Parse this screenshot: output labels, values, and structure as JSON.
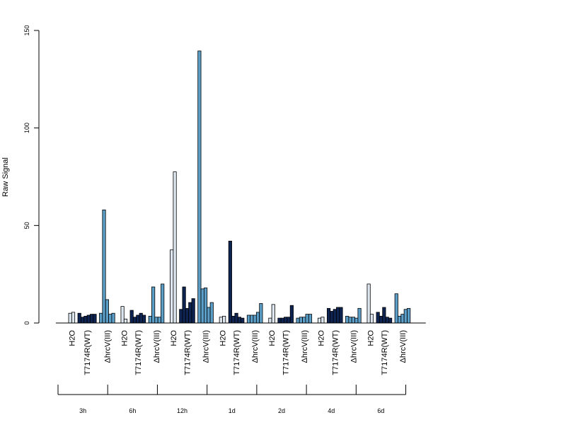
{
  "chart_data": {
    "type": "bar",
    "ylabel": "Raw Signal",
    "ylim": [
      0,
      150
    ],
    "yticks": [
      0,
      50,
      100,
      150
    ],
    "grid": false,
    "colors": {
      "H2O": "#dde6ef",
      "T7174R(WT)": "#0e2452",
      "ΔhrcV(III)": "#5b9ec8",
      "outline": "#000000"
    },
    "time_points": [
      {
        "label": "3h",
        "groups": [
          {
            "name": "H2O",
            "values": [
              5,
              5.5
            ]
          },
          {
            "name": "T7174R(WT)",
            "values": [
              5,
              3,
              3.5,
              4,
              4.5,
              4.5
            ]
          },
          {
            "name": "ΔhrcV(III)",
            "values": [
              5,
              58,
              12,
              4.5,
              5
            ]
          }
        ]
      },
      {
        "label": "6h",
        "groups": [
          {
            "name": "H2O",
            "values": [
              8.5,
              2
            ]
          },
          {
            "name": "T7174R(WT)",
            "values": [
              6.5,
              3,
              4,
              5,
              4
            ]
          },
          {
            "name": "ΔhrcV(III)",
            "values": [
              3.5,
              18.5,
              3,
              3,
              20
            ]
          }
        ]
      },
      {
        "label": "12h",
        "groups": [
          {
            "name": "H2O",
            "values": [
              37.5,
              77.5
            ]
          },
          {
            "name": "T7174R(WT)",
            "values": [
              7,
              18.5,
              7.5,
              10.5,
              12.5
            ]
          },
          {
            "name": "ΔhrcV(III)",
            "values": [
              139.5,
              17.5,
              18,
              8,
              10.5
            ]
          }
        ]
      },
      {
        "label": "1d",
        "groups": [
          {
            "name": "H2O",
            "values": [
              3,
              3.5
            ]
          },
          {
            "name": "T7174R(WT)",
            "values": [
              42,
              3.5,
              5,
              3,
              2.5
            ]
          },
          {
            "name": "ΔhrcV(III)",
            "values": [
              4,
              4,
              4,
              5.5,
              10
            ]
          }
        ]
      },
      {
        "label": "2d",
        "groups": [
          {
            "name": "H2O",
            "values": [
              2.5,
              9.5
            ]
          },
          {
            "name": "T7174R(WT)",
            "values": [
              2.5,
              2.5,
              3,
              3,
              9
            ]
          },
          {
            "name": "ΔhrcV(III)",
            "values": [
              2.5,
              3,
              3,
              4.5,
              4.5
            ]
          }
        ]
      },
      {
        "label": "4d",
        "groups": [
          {
            "name": "H2O",
            "values": [
              2.5,
              3
            ]
          },
          {
            "name": "T7174R(WT)",
            "values": [
              7.5,
              6,
              7,
              8,
              8
            ]
          },
          {
            "name": "ΔhrcV(III)",
            "values": [
              3.5,
              3,
              3,
              2.5,
              7.5
            ]
          }
        ]
      },
      {
        "label": "6d",
        "groups": [
          {
            "name": "H2O",
            "values": [
              20,
              4.5
            ]
          },
          {
            "name": "T7174R(WT)",
            "values": [
              5.5,
              3.5,
              8,
              3,
              2.5
            ]
          },
          {
            "name": "ΔhrcV(III)",
            "values": [
              15,
              3.5,
              4.5,
              7,
              7.5
            ]
          }
        ]
      }
    ]
  }
}
